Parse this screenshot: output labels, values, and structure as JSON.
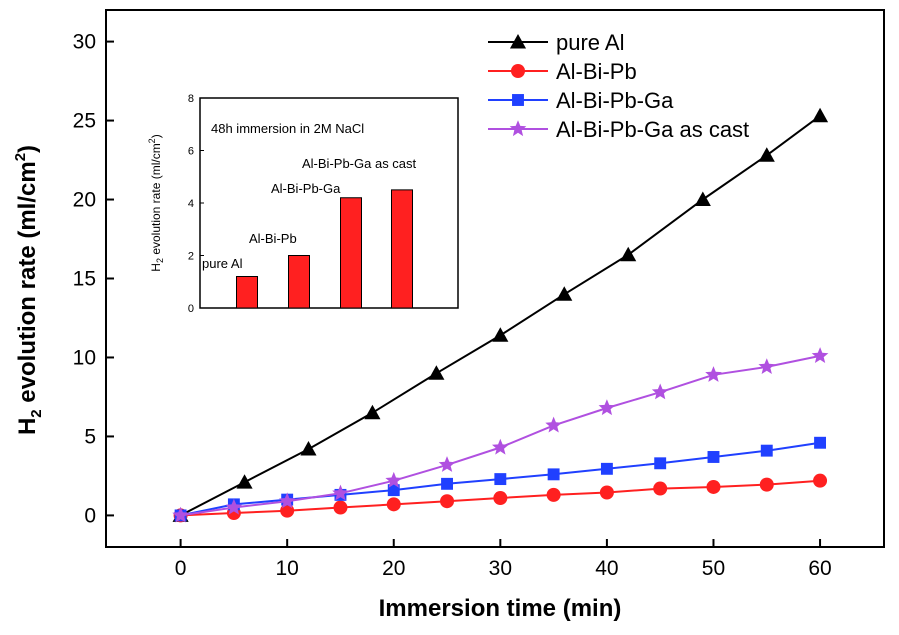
{
  "chart_data": [
    {
      "type": "line",
      "xlabel": "Immersion time (min)",
      "ylabel_main": "H",
      "ylabel_sub": "2",
      "ylabel_rest": " evolution rate (ml/cm",
      "ylabel_sup": "2",
      "ylabel_end": ")",
      "xlim": [
        -7,
        66
      ],
      "ylim": [
        -2,
        32
      ],
      "xticks": [
        0,
        10,
        20,
        30,
        40,
        50,
        60
      ],
      "yticks": [
        0,
        5,
        10,
        15,
        20,
        25,
        30
      ],
      "legend": "top-right",
      "series": [
        {
          "name": "pure Al",
          "color": "#000000",
          "marker": "triangle",
          "x": [
            0,
            6,
            12,
            18,
            24,
            30,
            36,
            42,
            49,
            55,
            60
          ],
          "y": [
            0,
            2.1,
            4.2,
            6.5,
            9.0,
            11.4,
            14.0,
            16.5,
            20.0,
            22.8,
            25.3
          ]
        },
        {
          "name": "Al-Bi-Pb",
          "color": "#ff2020",
          "marker": "circle",
          "x": [
            0,
            5,
            10,
            15,
            20,
            25,
            30,
            35,
            40,
            45,
            50,
            55,
            60
          ],
          "y": [
            0,
            0.15,
            0.3,
            0.5,
            0.7,
            0.9,
            1.1,
            1.3,
            1.45,
            1.7,
            1.8,
            1.95,
            2.2
          ]
        },
        {
          "name": "Al-Bi-Pb-Ga",
          "color": "#2040ff",
          "marker": "square",
          "x": [
            0,
            5,
            10,
            15,
            20,
            25,
            30,
            35,
            40,
            45,
            50,
            55,
            60
          ],
          "y": [
            0,
            0.7,
            1.0,
            1.3,
            1.6,
            2.0,
            2.3,
            2.6,
            2.95,
            3.3,
            3.7,
            4.1,
            4.6
          ]
        },
        {
          "name": "Al-Bi-Pb-Ga as cast",
          "color": "#b050e0",
          "marker": "star",
          "x": [
            0,
            5,
            10,
            15,
            20,
            25,
            30,
            35,
            40,
            45,
            50,
            55,
            60
          ],
          "y": [
            0,
            0.5,
            0.9,
            1.4,
            2.2,
            3.2,
            4.3,
            5.7,
            6.8,
            7.8,
            8.9,
            9.4,
            10.1
          ]
        }
      ]
    },
    {
      "type": "bar",
      "annotation": "48h immersion in 2M NaCl",
      "ylabel_main": "H",
      "ylabel_sub": "2",
      "ylabel_rest": " evolution rate (ml/cm",
      "ylabel_sup": "2",
      "ylabel_end": ")",
      "ylim": [
        0,
        8
      ],
      "yticks": [
        0,
        2,
        4,
        6,
        8
      ],
      "bar_color": "#ff2020",
      "categories": [
        "pure Al",
        "Al-Bi-Pb",
        "Al-Bi-Pb-Ga",
        "Al-Bi-Pb-Ga as cast"
      ],
      "values": [
        1.2,
        2.0,
        4.2,
        4.5
      ]
    }
  ]
}
